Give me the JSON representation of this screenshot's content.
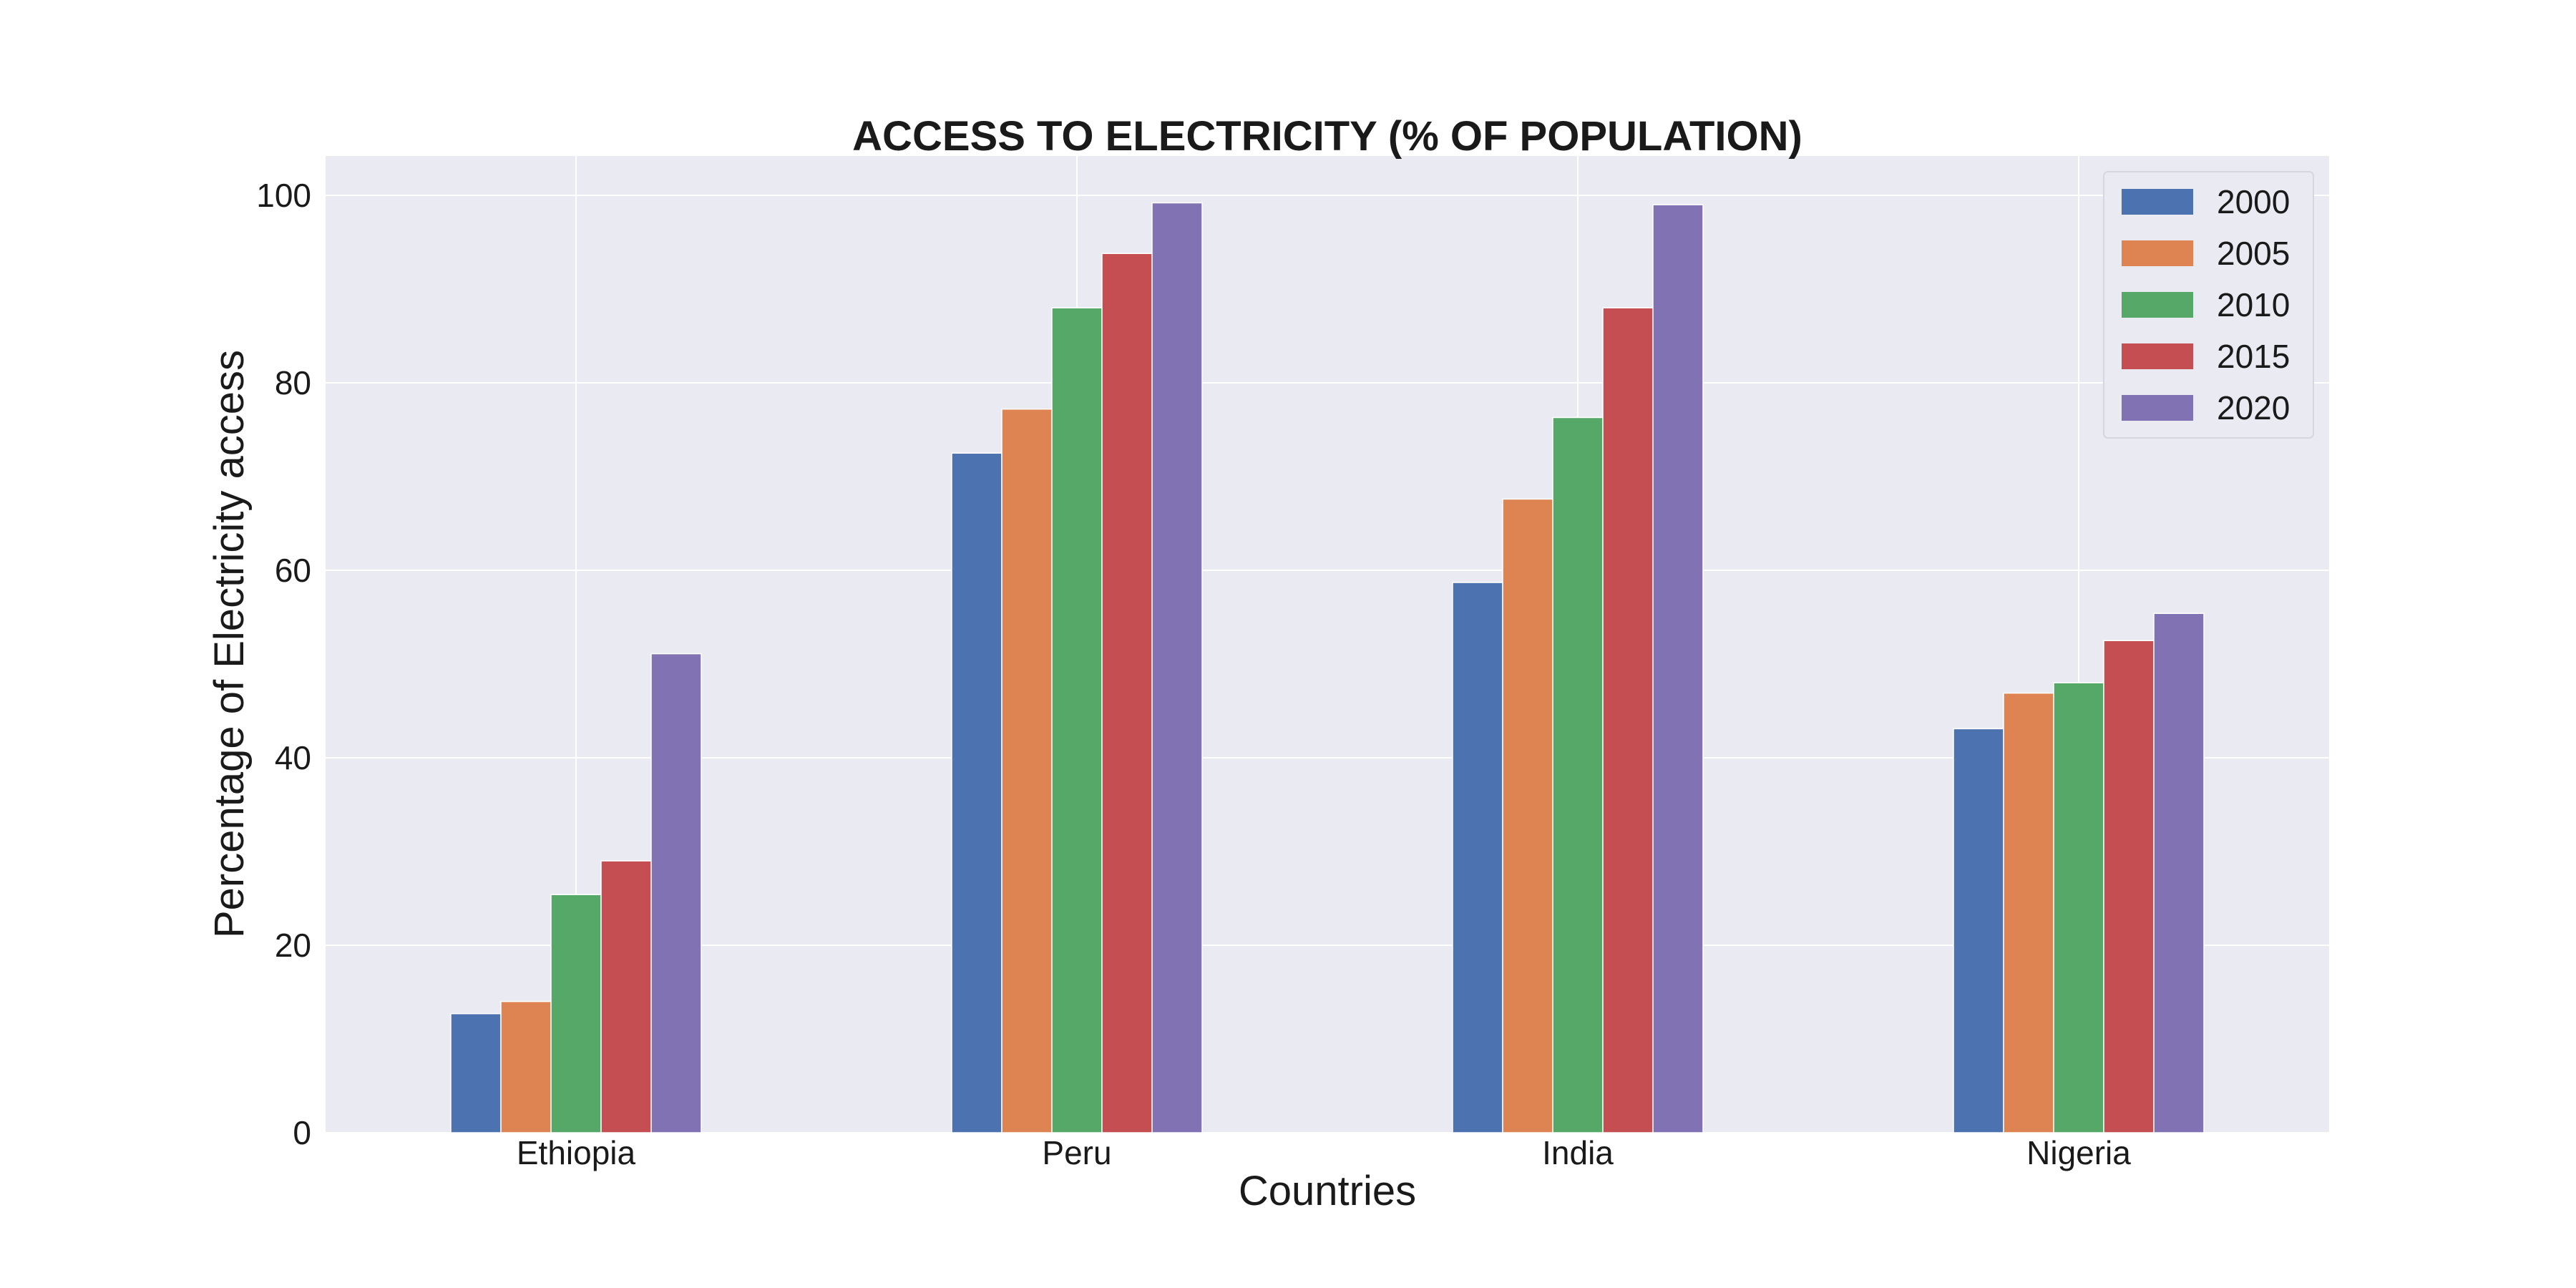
{
  "chart_data": {
    "type": "bar",
    "title": "ACCESS TO ELECTRICITY (% OF POPULATION)",
    "xlabel": "Countries",
    "ylabel": "Percentage of Electricity access",
    "categories": [
      "Ethiopia",
      "Peru",
      "India",
      "Nigeria"
    ],
    "series": [
      {
        "name": "2000",
        "color": "#4c72b0",
        "values": [
          12.7,
          72.5,
          58.7,
          43.1
        ]
      },
      {
        "name": "2005",
        "color": "#dd8452",
        "values": [
          14.0,
          77.2,
          67.6,
          46.9
        ]
      },
      {
        "name": "2010",
        "color": "#55a868",
        "values": [
          25.4,
          88.0,
          76.3,
          48.0
        ]
      },
      {
        "name": "2015",
        "color": "#c44e52",
        "values": [
          29.0,
          93.8,
          88.0,
          52.5
        ]
      },
      {
        "name": "2020",
        "color": "#8172b3",
        "values": [
          51.1,
          99.2,
          99.0,
          55.4
        ]
      }
    ],
    "yticks": [
      0,
      20,
      40,
      60,
      80,
      100
    ],
    "ylim": [
      0,
      104.2
    ],
    "grid": true,
    "legend_position": "top-right",
    "plot_background": "#eaeaf2"
  }
}
